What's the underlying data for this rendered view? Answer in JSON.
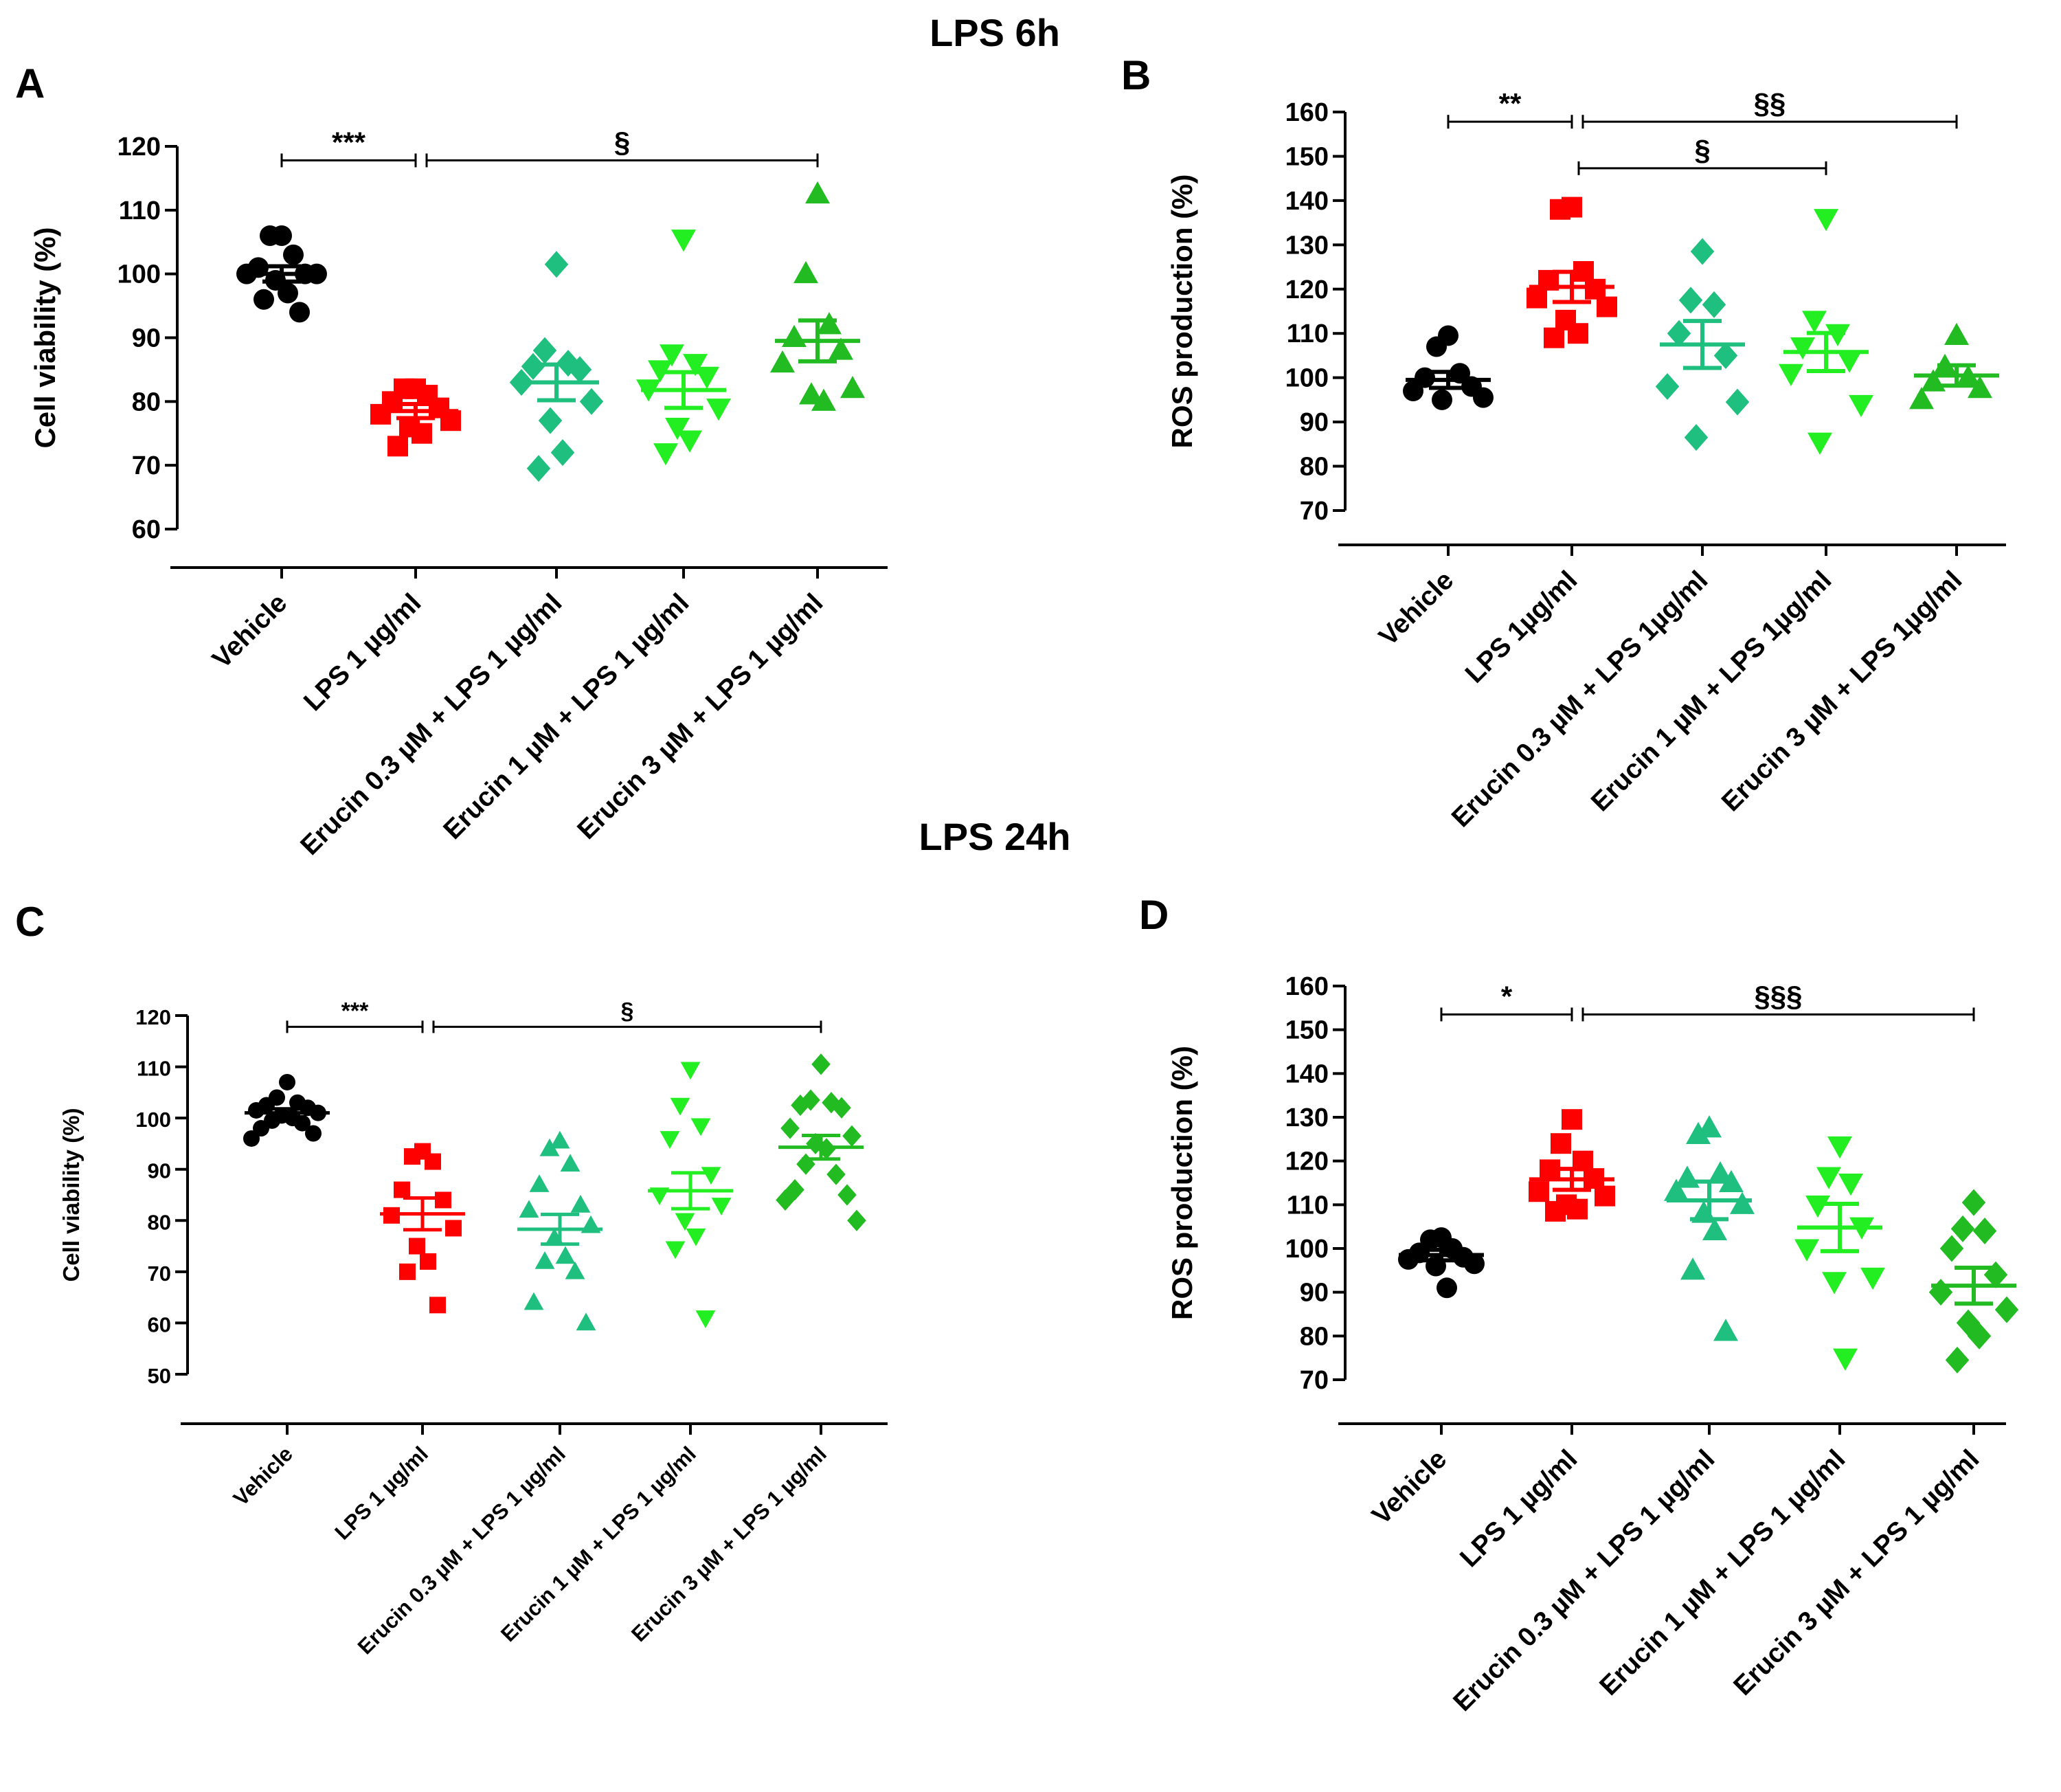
{
  "section_titles": {
    "top": "LPS 6h",
    "bottom": "LPS 24h"
  },
  "chart_data": [
    {
      "id": "A",
      "type": "scatter",
      "panel_label": "A",
      "title": "LPS 6h",
      "ylabel": "Cell viability (%)",
      "ylim": [
        60,
        120
      ],
      "yticks": [
        60,
        70,
        80,
        90,
        100,
        110,
        120
      ],
      "categories": [
        "Vehicle",
        "LPS 1 µg/ml",
        "Erucin 0.3 µM + LPS 1 µg/ml",
        "Erucin 1 µM + LPS 1 µg/ml",
        "Erucin 3 µM + LPS 1 µg/ml"
      ],
      "colors": [
        "#000000",
        "#ff0000",
        "#1fbf80",
        "#22ee22",
        "#22bb22"
      ],
      "markers": [
        "circle",
        "square",
        "diamond",
        "triangle-down",
        "triangle-up"
      ],
      "means": [
        100,
        78.5,
        83,
        81.8,
        89.5
      ],
      "sems": [
        1.2,
        1.1,
        2.8,
        2.8,
        3.2
      ],
      "points": [
        [
          106,
          106,
          103,
          101,
          100,
          100,
          100,
          99,
          97,
          96,
          94
        ],
        [
          82,
          82,
          81,
          80,
          79,
          78,
          77,
          76,
          75,
          73
        ],
        [
          101.5,
          88,
          86,
          85.5,
          85,
          83,
          80,
          77,
          72,
          69.5
        ],
        [
          105.5,
          87.5,
          86,
          85,
          84,
          82,
          79,
          76,
          74,
          72
        ],
        [
          112.5,
          100,
          92,
          90,
          88,
          86,
          82,
          81,
          80
        ]
      ],
      "significance": [
        {
          "from": 0,
          "to": 1,
          "y": 117.8,
          "label": "***"
        },
        {
          "from": 1,
          "to": 4,
          "y": 117.8,
          "label": "§"
        }
      ]
    },
    {
      "id": "B",
      "type": "scatter",
      "panel_label": "B",
      "ylabel": "ROS production (%)",
      "ylim": [
        70,
        160
      ],
      "yticks": [
        70,
        80,
        90,
        100,
        110,
        120,
        130,
        140,
        150,
        160
      ],
      "categories": [
        "Vehicle",
        "LPS 1µg/ml",
        "Erucin 0.3 µM + LPS 1µg/ml",
        "Erucin 1 µM + LPS 1µg/ml",
        "Erucin 3 µM + LPS 1µg/ml"
      ],
      "colors": [
        "#000000",
        "#ff0000",
        "#1fbf80",
        "#22ee22",
        "#22bb22"
      ],
      "markers": [
        "circle",
        "square",
        "diamond",
        "triangle-down",
        "triangle-up"
      ],
      "means": [
        99.5,
        120.5,
        107.5,
        105.8,
        100.5
      ],
      "sems": [
        1.8,
        3.4,
        5.3,
        4.3,
        2.3
      ],
      "points": [
        [
          109.5,
          107,
          101,
          100,
          98,
          97,
          95.5,
          95
        ],
        [
          138.5,
          138,
          124,
          122,
          120,
          118,
          116,
          113,
          110,
          109
        ],
        [
          128.5,
          117.5,
          116.5,
          110,
          105,
          98,
          94.5,
          86.5
        ],
        [
          136,
          113,
          110,
          107,
          104,
          101,
          94,
          85.5
        ],
        [
          109.5,
          102.5,
          100,
          99,
          97.5,
          95
        ]
      ],
      "significance": [
        {
          "from": 0,
          "to": 1,
          "y": 157.8,
          "label": "**"
        },
        {
          "from": 1,
          "to": 4,
          "y": 157.8,
          "label": "§§"
        },
        {
          "from": 1,
          "to": 3,
          "y": 147.3,
          "label": "§"
        }
      ]
    },
    {
      "id": "C",
      "type": "scatter",
      "panel_label": "C",
      "title": "LPS 24h",
      "ylabel": "Cell viability (%)",
      "ylim": [
        50,
        120
      ],
      "yticks": [
        50,
        60,
        70,
        80,
        90,
        100,
        110,
        120
      ],
      "categories": [
        "Vehicle",
        "LPS 1 µg/ml",
        "Erucin 0.3 µM + LPS 1 µg/ml",
        "Erucin 1 µM + LPS 1 µg/ml",
        "Erucin 3 µM + LPS 1 µg/ml"
      ],
      "colors": [
        "#000000",
        "#ff0000",
        "#1fbf80",
        "#22ee22",
        "#22bb22"
      ],
      "markers": [
        "circle",
        "square",
        "triangle-up",
        "triangle-down",
        "diamond"
      ],
      "means": [
        101,
        81.3,
        78.3,
        85.8,
        94.3
      ],
      "sems": [
        0.8,
        3.1,
        2.9,
        3.5,
        2.3
      ],
      "points": [
        [
          107,
          104,
          103,
          102.5,
          102,
          101.5,
          101,
          100.5,
          100,
          99.5,
          99,
          98,
          97,
          96
        ],
        [
          93.5,
          92.5,
          91.5,
          86,
          84,
          81,
          78.5,
          75,
          72,
          70,
          63.5
        ],
        [
          95.5,
          94,
          91,
          87,
          83,
          82,
          79,
          76.5,
          73,
          72,
          70,
          64,
          60
        ],
        [
          109.5,
          102.5,
          98.5,
          96,
          89,
          85,
          83,
          80,
          77,
          74.5,
          61
        ],
        [
          110.5,
          103.5,
          103,
          102.5,
          102,
          98,
          96.5,
          95,
          94,
          91,
          89,
          86,
          85,
          84,
          80
        ]
      ],
      "significance": [
        {
          "from": 0,
          "to": 1,
          "y": 117.8,
          "label": "***"
        },
        {
          "from": 1,
          "to": 4,
          "y": 117.8,
          "label": "§"
        }
      ]
    },
    {
      "id": "D",
      "type": "scatter",
      "panel_label": "D",
      "ylabel": "ROS production (%)",
      "ylim": [
        70,
        160
      ],
      "yticks": [
        70,
        80,
        90,
        100,
        110,
        120,
        130,
        140,
        150,
        160
      ],
      "categories": [
        "Vehicle",
        "LPS 1 µg/ml",
        "Erucin 0.3 µM + LPS 1 µg/ml",
        "Erucin 1 µM + LPS 1 µg/ml",
        "Erucin 3 µM + LPS 1 µg/ml"
      ],
      "colors": [
        "#000000",
        "#ff0000",
        "#1fbf80",
        "#22ee22",
        "#22bb22"
      ],
      "markers": [
        "circle",
        "square",
        "triangle-up",
        "triangle-down",
        "diamond"
      ],
      "means": [
        98.5,
        115.8,
        111,
        104.8,
        91.5
      ],
      "sems": [
        1.2,
        2.4,
        4.3,
        5.4,
        4.1
      ],
      "points": [
        [
          102.5,
          102,
          100,
          99,
          98,
          97.5,
          96.5,
          96,
          91
        ],
        [
          129.5,
          124,
          120,
          118,
          116,
          113,
          112,
          110,
          109,
          108.5
        ],
        [
          127.5,
          126,
          117,
          116,
          115,
          113,
          110,
          108,
          104,
          95,
          81
        ],
        [
          123.5,
          116.5,
          115,
          110,
          105,
          100,
          93.5,
          92.5,
          75
        ],
        [
          110.5,
          104.5,
          104,
          100,
          94,
          90,
          86,
          83,
          80,
          74.5
        ]
      ],
      "significance": [
        {
          "from": 0,
          "to": 1,
          "y": 153.5,
          "label": "*"
        },
        {
          "from": 1,
          "to": 4,
          "y": 153.5,
          "label": "§§§"
        }
      ]
    }
  ]
}
